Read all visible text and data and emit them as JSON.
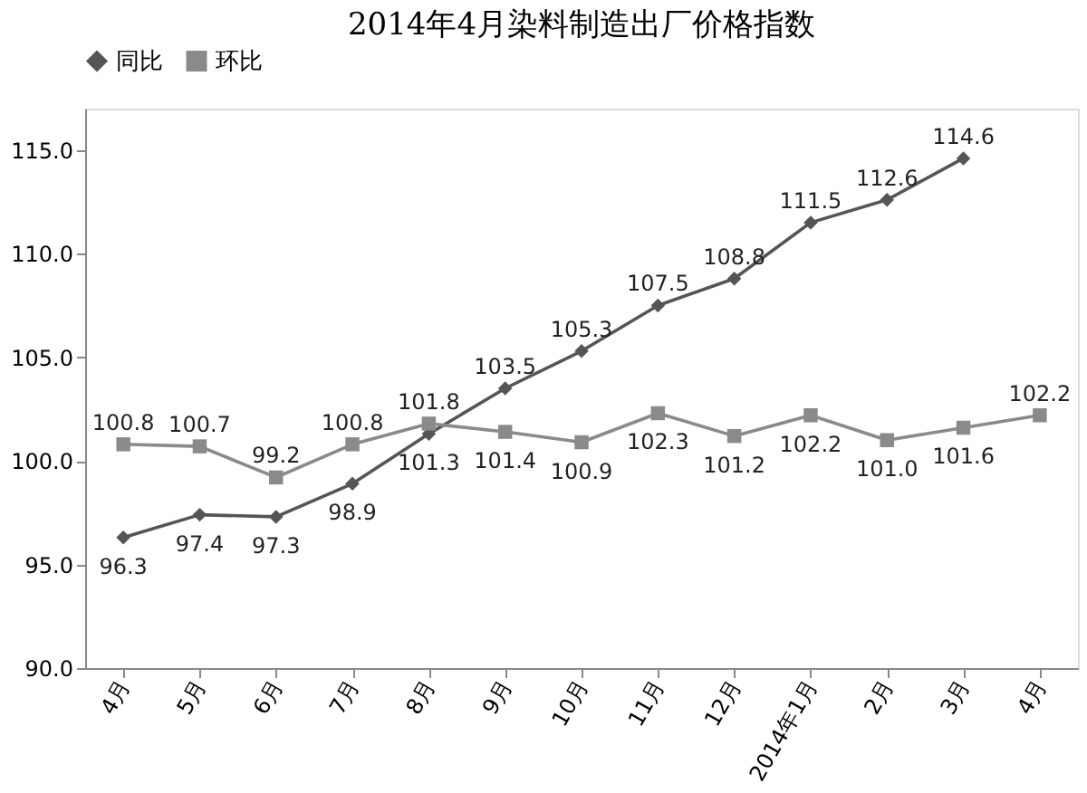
{
  "chart_data": {
    "type": "line",
    "title": "2014年4月染料制造出厂价格指数",
    "categories": [
      "4月",
      "5月",
      "6月",
      "7月",
      "8月",
      "9月",
      "10月",
      "11月",
      "12月",
      "2014年1月",
      "2月",
      "3月",
      "4月"
    ],
    "series": [
      {
        "name": "同比",
        "color": "#555555",
        "marker": "diamond",
        "values": [
          96.3,
          97.4,
          97.3,
          98.9,
          101.3,
          103.5,
          105.3,
          107.5,
          108.8,
          111.5,
          112.6,
          114.6,
          null
        ],
        "value_labels": [
          "96.3",
          "97.4",
          "97.3",
          "98.9",
          "101.3",
          "103.5",
          "105.3",
          "107.5",
          "108.8",
          "111.5",
          "112.6",
          "114.6",
          null
        ]
      },
      {
        "name": "环比",
        "color": "#8a8a8a",
        "marker": "square",
        "values": [
          100.8,
          100.7,
          99.2,
          100.8,
          101.8,
          101.4,
          100.9,
          102.3,
          101.2,
          102.2,
          101.0,
          101.6,
          102.2
        ],
        "value_labels": [
          "100.8",
          "100.7",
          "99.2",
          "100.8",
          "101.8",
          "101.4",
          "100.9",
          "102.3",
          "101.2",
          "102.2",
          "101.0",
          "101.6",
          "102.2"
        ]
      }
    ],
    "ylim": [
      90,
      117
    ],
    "yticks": [
      {
        "value": 90,
        "label": "90.0"
      },
      {
        "value": 95,
        "label": "95.0"
      },
      {
        "value": 100,
        "label": "100.0"
      },
      {
        "value": 105,
        "label": "105.0"
      },
      {
        "value": 110,
        "label": "110.0"
      },
      {
        "value": 115,
        "label": "115.0"
      }
    ],
    "grid": false,
    "legend": "top",
    "line_style": "solid"
  }
}
